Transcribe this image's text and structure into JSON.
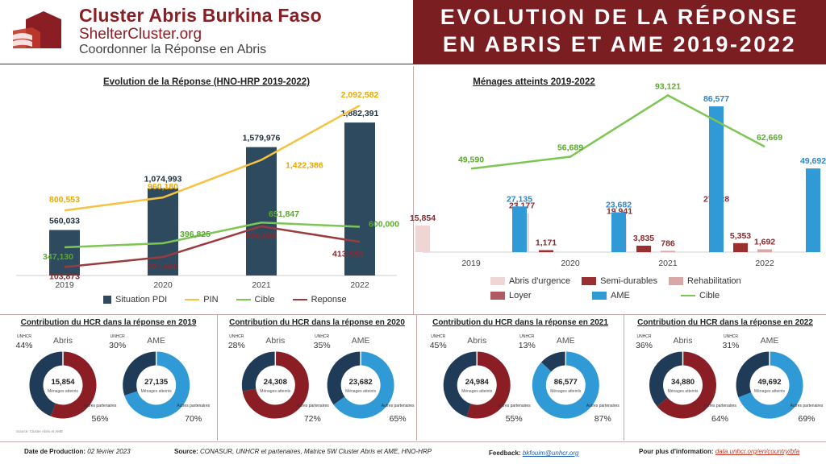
{
  "header": {
    "org_title": "Cluster Abris Burkina Faso",
    "org_url": "ShelterCluster.org",
    "org_tagline": "Coordonner la Réponse en Abris",
    "title_line1": "EVOLUTION DE LA RÉPONSE",
    "title_line2": "EN ABRIS ET AME 2019-2022",
    "accent_color": "#7b1e22"
  },
  "chart_data": [
    {
      "type": "bar",
      "title": "Evolution de la Réponse (HNO-HRP 2019-2022)",
      "categories": [
        "2019",
        "2020",
        "2021",
        "2022"
      ],
      "series": [
        {
          "name": "Situation PDI",
          "kind": "bar",
          "color": "#2e4a5f",
          "values": [
            560033,
            1074993,
            1579976,
            1882391
          ],
          "labels": [
            "560,033",
            "1,074,993",
            "1,579,976",
            "1,882,391"
          ]
        },
        {
          "name": "PIN",
          "kind": "line",
          "color": "#f5c242",
          "values": [
            800553,
            960180,
            1422386,
            2092582
          ],
          "labels": [
            "800,553",
            "960,180",
            "1,422,386",
            "2,092,582"
          ]
        },
        {
          "name": "Cible",
          "kind": "line",
          "color": "#7dc653",
          "values": [
            347130,
            396825,
            651847,
            600000
          ],
          "labels": [
            "347,130",
            "396,825",
            "651,847",
            "600,000"
          ]
        },
        {
          "name": "Reponse",
          "kind": "line",
          "color": "#9b3b3e",
          "values": [
            103873,
            227640,
            606039,
            413585
          ],
          "labels": [
            "103,873",
            "227,640",
            "606,039",
            "413,585"
          ]
        }
      ],
      "ylim": [
        0,
        2300000
      ]
    },
    {
      "type": "bar",
      "title": "Ménages atteints 2019-2022",
      "categories": [
        "2019",
        "2020",
        "2021",
        "2022"
      ],
      "series": [
        {
          "name": "Abris d'urgence",
          "kind": "bar",
          "color": "#efd6d4",
          "values": [
            15854,
            23177,
            19941,
            27128
          ],
          "labels": [
            "15,854",
            "23,177",
            "19,941",
            "27,128"
          ]
        },
        {
          "name": "Semi-durables",
          "kind": "bar",
          "color": "#9b2f2f",
          "values": [
            0,
            1171,
            3835,
            5353
          ],
          "labels": [
            "",
            "1,171",
            "3,835",
            "5,353"
          ]
        },
        {
          "name": "Rehabilitation",
          "kind": "bar",
          "color": "#d9a7a5",
          "values": [
            0,
            0,
            786,
            1692
          ],
          "labels": [
            "",
            "",
            "786",
            "1,692"
          ]
        },
        {
          "name": "Loyer",
          "kind": "bar",
          "color": "#b05b61",
          "values": [
            0,
            0,
            0,
            0
          ],
          "labels": [
            "",
            "",
            "",
            ""
          ]
        },
        {
          "name": "AME",
          "kind": "bar",
          "color": "#2f9ad6",
          "values": [
            27135,
            23682,
            86577,
            49692
          ],
          "labels": [
            "27,135",
            "23,682",
            "86,577",
            "49,692"
          ]
        },
        {
          "name": "Cible",
          "kind": "line",
          "color": "#7dc653",
          "values": [
            49590,
            56689,
            93121,
            62669
          ],
          "labels": [
            "49,590",
            "56,689",
            "93,121",
            "62,669"
          ]
        }
      ],
      "ylim": [
        0,
        100000
      ]
    }
  ],
  "panels": [
    {
      "title": "Contribution du HCR dans la réponse en 2019",
      "abris": {
        "label": "Abris",
        "unhcr_label": "UNHCR",
        "unhcr_pct": "44%",
        "partner_label": "Autres partenaires",
        "partner_pct": "56%",
        "center_value": "15,854",
        "center_unit": "Ménages atteints",
        "unhcr_share": 0.44
      },
      "ame": {
        "label": "AME",
        "unhcr_label": "UNHCR",
        "unhcr_pct": "30%",
        "partner_label": "Autres partenaires",
        "partner_pct": "70%",
        "center_value": "27,135",
        "center_unit": "Ménages atteints",
        "unhcr_share": 0.3
      },
      "source_note": "Source: Cluster Abris et AME"
    },
    {
      "title": "Contribution du HCR dans la réponse en 2020",
      "abris": {
        "label": "Abris",
        "unhcr_label": "UNHCR",
        "unhcr_pct": "28%",
        "partner_label": "Autres partenaires",
        "partner_pct": "72%",
        "center_value": "24,308",
        "center_unit": "Ménages atteints",
        "unhcr_share": 0.28
      },
      "ame": {
        "label": "AME",
        "unhcr_label": "UNHCR",
        "unhcr_pct": "35%",
        "partner_label": "Autres partenaires",
        "partner_pct": "65%",
        "center_value": "23,682",
        "center_unit": "Ménages atteints",
        "unhcr_share": 0.35
      }
    },
    {
      "title": "Contribution du HCR dans la réponse en 2021",
      "abris": {
        "label": "Abris",
        "unhcr_label": "UNHCR",
        "unhcr_pct": "45%",
        "partner_label": "Autres partenaires",
        "partner_pct": "55%",
        "center_value": "24,984",
        "center_unit": "Ménages atteints",
        "unhcr_share": 0.45
      },
      "ame": {
        "label": "AME",
        "unhcr_label": "UNHCR",
        "unhcr_pct": "13%",
        "partner_label": "Autres partenaires",
        "partner_pct": "87%",
        "center_value": "86,577",
        "center_unit": "Ménages atteints",
        "unhcr_share": 0.13
      }
    },
    {
      "title": "Contribution du HCR dans la réponse en 2022",
      "abris": {
        "label": "Abris",
        "unhcr_label": "UNHCR",
        "unhcr_pct": "36%",
        "partner_label": "Autres partenaires",
        "partner_pct": "64%",
        "center_value": "34,880",
        "center_unit": "Ménages atteints",
        "unhcr_share": 0.36
      },
      "ame": {
        "label": "AME",
        "unhcr_label": "UNHCR",
        "unhcr_pct": "31%",
        "partner_label": "Autres partenaires",
        "partner_pct": "69%",
        "center_value": "49,692",
        "center_unit": "Ménages atteints",
        "unhcr_share": 0.31
      }
    }
  ],
  "donut_colors": {
    "abris_unhcr": "#1f3b57",
    "abris_partner": "#8b1e24",
    "ame_unhcr": "#1f3b57",
    "ame_partner": "#2f9ad6"
  },
  "footer": {
    "date_label": "Date de Production:",
    "date_value": "02 février 2023",
    "source_label": "Source:",
    "source_value": "CONASUR, UNHCR et partenaires, Matrice 5W Cluster Abris et AME, HNO-HRP",
    "feedback_label": "Feedback:",
    "feedback_value": "bkfouim@unhcr.org",
    "info_label": "Pour plus d'information:",
    "info_value": "data.unhcr.org/en/country/bfa"
  }
}
